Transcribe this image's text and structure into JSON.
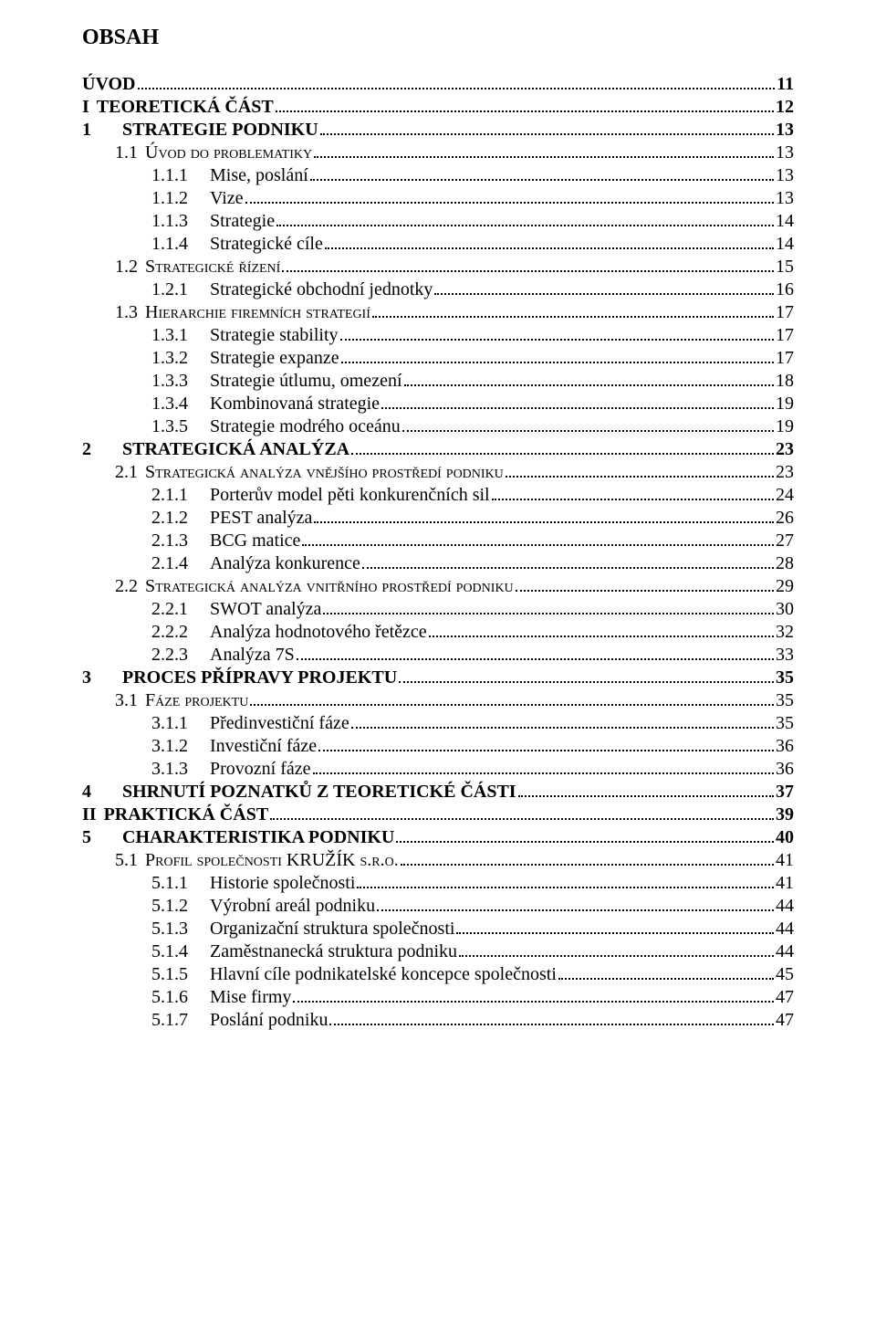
{
  "title": "OBSAH",
  "entries": [
    {
      "level": "lvl0",
      "num": "",
      "text": "ÚVOD",
      "page": "11",
      "bold": true
    },
    {
      "level": "lvl0",
      "num": "I",
      "text": "TEORETICKÁ ČÁST",
      "page": "12",
      "bold": true
    },
    {
      "level": "lvl1",
      "num": "1",
      "text": "STRATEGIE PODNIKU",
      "page": "13",
      "bold": true
    },
    {
      "level": "lvl2sc",
      "num": "1.1",
      "text": "Úvod do problematiky",
      "page": "13",
      "sc": true
    },
    {
      "level": "lvl3",
      "num": "1.1.1",
      "text": "Mise, poslání",
      "page": "13"
    },
    {
      "level": "lvl3",
      "num": "1.1.2",
      "text": "Vize",
      "page": "13"
    },
    {
      "level": "lvl3",
      "num": "1.1.3",
      "text": "Strategie",
      "page": "14"
    },
    {
      "level": "lvl3",
      "num": "1.1.4",
      "text": "Strategické cíle",
      "page": "14"
    },
    {
      "level": "lvl2sc",
      "num": "1.2",
      "text": "Strategické řízení",
      "page": "15",
      "sc": true
    },
    {
      "level": "lvl3",
      "num": "1.2.1",
      "text": "Strategické obchodní jednotky",
      "page": "16"
    },
    {
      "level": "lvl2sc",
      "num": "1.3",
      "text": "Hierarchie firemních strategií",
      "page": "17",
      "sc": true
    },
    {
      "level": "lvl3",
      "num": "1.3.1",
      "text": "Strategie stability",
      "page": "17"
    },
    {
      "level": "lvl3",
      "num": "1.3.2",
      "text": "Strategie expanze",
      "page": "17"
    },
    {
      "level": "lvl3",
      "num": "1.3.3",
      "text": "Strategie útlumu, omezení",
      "page": "18"
    },
    {
      "level": "lvl3",
      "num": "1.3.4",
      "text": "Kombinovaná strategie",
      "page": "19"
    },
    {
      "level": "lvl3",
      "num": "1.3.5",
      "text": "Strategie modrého oceánu",
      "page": "19"
    },
    {
      "level": "lvl1",
      "num": "2",
      "text": "STRATEGICKÁ ANALÝZA",
      "page": "23",
      "bold": true
    },
    {
      "level": "lvl2sc",
      "num": "2.1",
      "text": "Strategická analýza vnějšího prostředí podniku",
      "page": "23",
      "sc": true
    },
    {
      "level": "lvl3",
      "num": "2.1.1",
      "text": "Porterův model pěti konkurenčních sil",
      "page": "24"
    },
    {
      "level": "lvl3",
      "num": "2.1.2",
      "text": "PEST analýza",
      "page": "26"
    },
    {
      "level": "lvl3",
      "num": "2.1.3",
      "text": "BCG matice",
      "page": "27"
    },
    {
      "level": "lvl3",
      "num": "2.1.4",
      "text": "Analýza konkurence",
      "page": "28"
    },
    {
      "level": "lvl2sc",
      "num": "2.2",
      "text": "Strategická analýza vnitřního prostředí podniku",
      "page": "29",
      "sc": true
    },
    {
      "level": "lvl3",
      "num": "2.2.1",
      "text": "SWOT analýza",
      "page": "30"
    },
    {
      "level": "lvl3",
      "num": "2.2.2",
      "text": "Analýza hodnotového řetězce",
      "page": "32"
    },
    {
      "level": "lvl3",
      "num": "2.2.3",
      "text": "Analýza 7S",
      "page": "33"
    },
    {
      "level": "lvl1",
      "num": "3",
      "text": "PROCES PŘÍPRAVY PROJEKTU",
      "page": "35",
      "bold": true
    },
    {
      "level": "lvl2sc",
      "num": "3.1",
      "text": "Fáze projektu",
      "page": "35",
      "sc": true
    },
    {
      "level": "lvl3",
      "num": "3.1.1",
      "text": "Předinvestiční fáze",
      "page": "35"
    },
    {
      "level": "lvl3",
      "num": "3.1.2",
      "text": "Investiční fáze",
      "page": "36"
    },
    {
      "level": "lvl3",
      "num": "3.1.3",
      "text": "Provozní fáze",
      "page": "36"
    },
    {
      "level": "lvl1",
      "num": "4",
      "text": "SHRNUTÍ POZNATKŮ Z TEORETICKÉ ČÁSTI",
      "page": "37",
      "bold": true
    },
    {
      "level": "lvl0",
      "num": "II",
      "text": "PRAKTICKÁ ČÁST",
      "page": "39",
      "bold": true
    },
    {
      "level": "lvl1",
      "num": "5",
      "text": "CHARAKTERISTIKA PODNIKU",
      "page": "40",
      "bold": true
    },
    {
      "level": "lvl2sc",
      "num": "5.1",
      "text": "Profil společnosti KRUŽÍK s.r.o.",
      "page": "41",
      "sc": true
    },
    {
      "level": "lvl3",
      "num": "5.1.1",
      "text": "Historie společnosti",
      "page": "41"
    },
    {
      "level": "lvl3",
      "num": "5.1.2",
      "text": "Výrobní areál podniku",
      "page": "44"
    },
    {
      "level": "lvl3",
      "num": "5.1.3",
      "text": "Organizační struktura společnosti",
      "page": "44"
    },
    {
      "level": "lvl3",
      "num": "5.1.4",
      "text": "Zaměstnanecká struktura podniku",
      "page": "44"
    },
    {
      "level": "lvl3",
      "num": "5.1.5",
      "text": "Hlavní cíle podnikatelské koncepce společnosti",
      "page": "45"
    },
    {
      "level": "lvl3",
      "num": "5.1.6",
      "text": "Mise firmy",
      "page": "47"
    },
    {
      "level": "lvl3",
      "num": "5.1.7",
      "text": "Poslání podniku",
      "page": "47"
    }
  ]
}
